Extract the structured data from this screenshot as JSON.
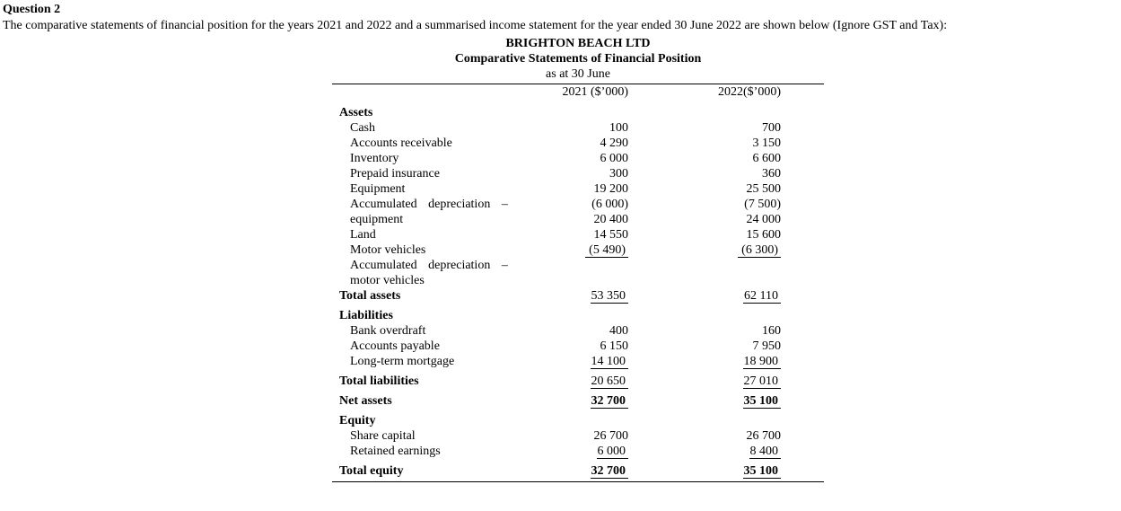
{
  "colors": {
    "text": "#000000",
    "background": "#ffffff"
  },
  "page": {
    "question_label": "Question 2",
    "intro": "The comparative statements of financial position for the years 2021 and 2022 and a summarised income statement for the year ended 30 June 2022 are shown below (Ignore GST and Tax):"
  },
  "statement": {
    "company": "BRIGHTON BEACH LTD",
    "title": "Comparative Statements of Financial Position",
    "subtitle": "as at 30 June",
    "columns": [
      "2021 ($’000)",
      "2022($’000)"
    ],
    "rows": [
      {
        "style": "section",
        "label": "Assets",
        "v1": "",
        "v2": "",
        "gap": true
      },
      {
        "style": "item",
        "label": "Cash",
        "v1": "100",
        "v2": "700"
      },
      {
        "style": "item",
        "label": "Accounts receivable",
        "v1": "4 290",
        "v2": "3 150"
      },
      {
        "style": "item",
        "label": "Inventory",
        "v1": "6 000",
        "v2": "6 600"
      },
      {
        "style": "item",
        "label": "Prepaid insurance",
        "v1": "300",
        "v2": "360"
      },
      {
        "style": "item",
        "label": "Equipment",
        "v1": "19 200",
        "v2": "25 500"
      },
      {
        "style": "item",
        "label": "Accumulated depreciation –",
        "v1": "(6 000)",
        "v2": "(7 500)",
        "spread": true
      },
      {
        "style": "item",
        "label": "equipment",
        "v1": "20 400",
        "v2": "24 000"
      },
      {
        "style": "item",
        "label": "Land",
        "v1": "14 550",
        "v2": "15 600"
      },
      {
        "style": "item",
        "label": "Motor vehicles",
        "v1": " (5 490)",
        "v2": " (6 300)",
        "underline": true
      },
      {
        "style": "item",
        "label": "Accumulated depreciation –",
        "v1": "",
        "v2": "",
        "spread": true
      },
      {
        "style": "item",
        "label": "motor vehicles",
        "v1": "",
        "v2": ""
      },
      {
        "style": "total",
        "label": "Total assets",
        "v1": "53 350",
        "v2": "62 110",
        "underline": true
      },
      {
        "style": "section",
        "label": "Liabilities",
        "v1": "",
        "v2": "",
        "gap": true
      },
      {
        "style": "item",
        "label": "Bank overdraft",
        "v1": "400",
        "v2": "160"
      },
      {
        "style": "item",
        "label": "Accounts payable",
        "v1": "6 150",
        "v2": "7 950"
      },
      {
        "style": "item",
        "label": "Long-term mortgage",
        "v1": "14 100",
        "v2": "18 900",
        "underline": true
      },
      {
        "style": "total",
        "label": "Total liabilities",
        "v1": "20 650",
        "v2": "27 010",
        "underline": true,
        "gap": true
      },
      {
        "style": "total",
        "label": "Net assets",
        "v1": "32 700",
        "v2": "35 100",
        "underline": true,
        "bold_values": true,
        "gap": true
      },
      {
        "style": "section",
        "label": "Equity",
        "v1": "",
        "v2": "",
        "gap": true
      },
      {
        "style": "item",
        "label": "Share capital",
        "v1": "26 700",
        "v2": "26 700"
      },
      {
        "style": "item",
        "label": "Retained earnings",
        "v1": "6 000",
        "v2": "8 400",
        "underline": true
      },
      {
        "style": "total",
        "label": "Total equity",
        "v1": "32 700",
        "v2": "35 100",
        "underline": true,
        "bold_values": true,
        "gap": true
      }
    ]
  }
}
